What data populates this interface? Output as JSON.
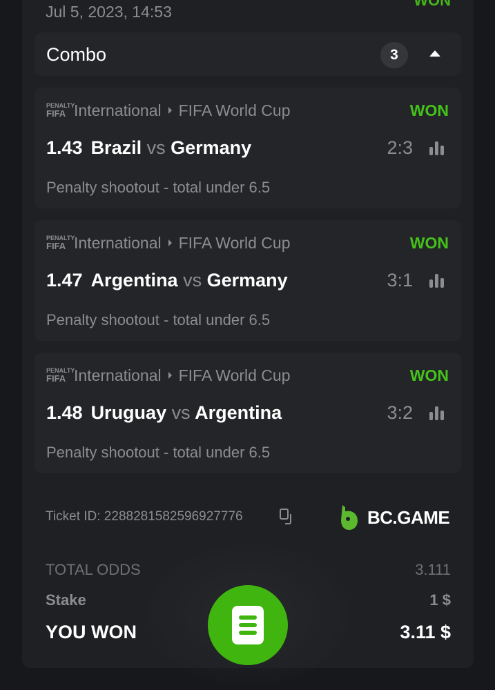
{
  "header": {
    "date": "Jul 5, 2023, 14:53",
    "status": "WON"
  },
  "combo": {
    "label": "Combo",
    "count": "3"
  },
  "bets": [
    {
      "logo": "PENALTY FIFA 24",
      "category": "International",
      "league": "FIFA World Cup",
      "status": "WON",
      "odds": "1.43",
      "home": "Brazil",
      "vs": "vs",
      "away": "Germany",
      "score": "2:3",
      "market": "Penalty shootout - total under 6.5"
    },
    {
      "logo": "PENALTY FIFA 24",
      "category": "International",
      "league": "FIFA World Cup",
      "status": "WON",
      "odds": "1.47",
      "home": "Argentina",
      "vs": "vs",
      "away": "Germany",
      "score": "3:1",
      "market": "Penalty shootout - total under 6.5"
    },
    {
      "logo": "PENALTY FIFA 24",
      "category": "International",
      "league": "FIFA World Cup",
      "status": "WON",
      "odds": "1.48",
      "home": "Uruguay",
      "vs": "vs",
      "away": "Argentina",
      "score": "3:2",
      "market": "Penalty shootout - total under 6.5"
    }
  ],
  "ticket": {
    "label": "Ticket ID: 2288281582596927776",
    "brand": "BC.GAME"
  },
  "summary": {
    "total_odds_label": "TOTAL ODDS",
    "total_odds": "3.111",
    "stake_label": "Stake",
    "stake": "1 $",
    "won_label": "YOU WON",
    "won": "3.11 $"
  },
  "colors": {
    "accent": "#41b50f",
    "won": "#45c21a"
  }
}
